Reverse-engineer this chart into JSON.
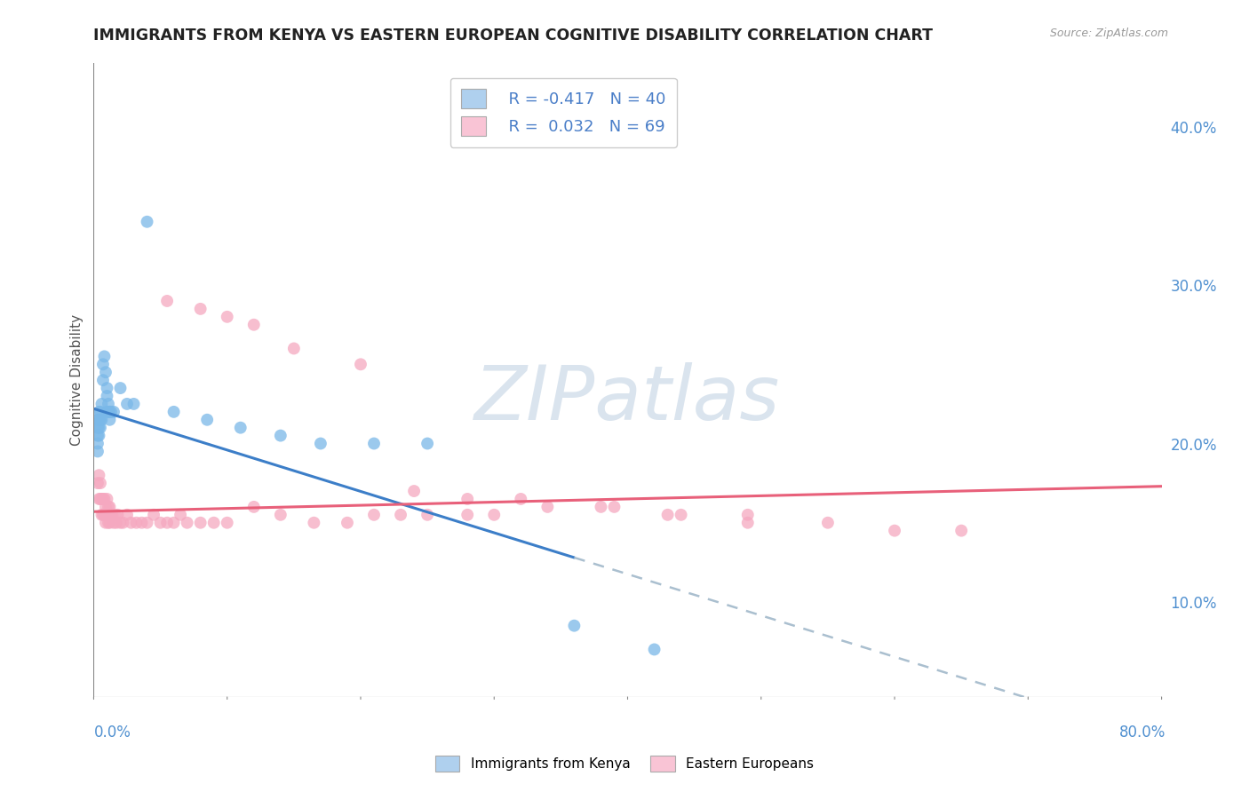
{
  "title": "IMMIGRANTS FROM KENYA VS EASTERN EUROPEAN COGNITIVE DISABILITY CORRELATION CHART",
  "source": "Source: ZipAtlas.com",
  "ylabel": "Cognitive Disability",
  "legend_label1": "Immigrants from Kenya",
  "legend_label2": "Eastern Europeans",
  "r1": -0.417,
  "n1": 40,
  "r2": 0.032,
  "n2": 69,
  "color1": "#7ab8e8",
  "color2": "#f5a8c0",
  "color1_legend": "#afd0ee",
  "color2_legend": "#f9c4d5",
  "trendline1_color": "#3c7ec8",
  "trendline2_color": "#e8607a",
  "trendline_dash_color": "#aabfcf",
  "watermark_color": "#dae4ee",
  "ytick_labels": [
    "10.0%",
    "20.0%",
    "30.0%",
    "40.0%"
  ],
  "ytick_values": [
    0.1,
    0.2,
    0.3,
    0.4
  ],
  "xlim": [
    0.0,
    0.8
  ],
  "ylim": [
    0.04,
    0.44
  ],
  "kenya_x": [
    0.003,
    0.003,
    0.003,
    0.003,
    0.003,
    0.004,
    0.004,
    0.004,
    0.004,
    0.005,
    0.005,
    0.005,
    0.006,
    0.006,
    0.007,
    0.007,
    0.008,
    0.009,
    0.01,
    0.01,
    0.01,
    0.011,
    0.011,
    0.012,
    0.012,
    0.013,
    0.015,
    0.02,
    0.025,
    0.03,
    0.04,
    0.06,
    0.085,
    0.11,
    0.14,
    0.17,
    0.21,
    0.25,
    0.36,
    0.42
  ],
  "kenya_y": [
    0.215,
    0.21,
    0.205,
    0.2,
    0.195,
    0.22,
    0.215,
    0.21,
    0.205,
    0.22,
    0.215,
    0.21,
    0.225,
    0.215,
    0.25,
    0.24,
    0.255,
    0.245,
    0.235,
    0.22,
    0.23,
    0.22,
    0.225,
    0.215,
    0.22,
    0.22,
    0.22,
    0.235,
    0.225,
    0.225,
    0.34,
    0.22,
    0.215,
    0.21,
    0.205,
    0.2,
    0.2,
    0.2,
    0.085,
    0.07
  ],
  "eastern_x": [
    0.003,
    0.004,
    0.004,
    0.005,
    0.005,
    0.006,
    0.006,
    0.007,
    0.007,
    0.008,
    0.008,
    0.009,
    0.009,
    0.01,
    0.01,
    0.011,
    0.011,
    0.012,
    0.012,
    0.013,
    0.014,
    0.015,
    0.016,
    0.017,
    0.018,
    0.02,
    0.022,
    0.025,
    0.028,
    0.032,
    0.036,
    0.04,
    0.045,
    0.05,
    0.055,
    0.06,
    0.065,
    0.07,
    0.08,
    0.09,
    0.1,
    0.12,
    0.14,
    0.165,
    0.19,
    0.21,
    0.23,
    0.25,
    0.28,
    0.3,
    0.34,
    0.39,
    0.44,
    0.49,
    0.055,
    0.08,
    0.1,
    0.12,
    0.15,
    0.2,
    0.24,
    0.28,
    0.32,
    0.38,
    0.43,
    0.49,
    0.55,
    0.6,
    0.65
  ],
  "eastern_y": [
    0.175,
    0.18,
    0.165,
    0.175,
    0.165,
    0.165,
    0.155,
    0.165,
    0.155,
    0.165,
    0.155,
    0.16,
    0.15,
    0.165,
    0.155,
    0.16,
    0.15,
    0.16,
    0.15,
    0.155,
    0.155,
    0.15,
    0.155,
    0.15,
    0.155,
    0.15,
    0.15,
    0.155,
    0.15,
    0.15,
    0.15,
    0.15,
    0.155,
    0.15,
    0.15,
    0.15,
    0.155,
    0.15,
    0.15,
    0.15,
    0.15,
    0.16,
    0.155,
    0.15,
    0.15,
    0.155,
    0.155,
    0.155,
    0.155,
    0.155,
    0.16,
    0.16,
    0.155,
    0.155,
    0.29,
    0.285,
    0.28,
    0.275,
    0.26,
    0.25,
    0.17,
    0.165,
    0.165,
    0.16,
    0.155,
    0.15,
    0.15,
    0.145,
    0.145
  ],
  "trendline1_x0": 0.0,
  "trendline1_y0": 0.222,
  "trendline1_x1": 0.36,
  "trendline1_y1": 0.128,
  "trendline1_dash_x0": 0.36,
  "trendline1_dash_y0": 0.128,
  "trendline1_dash_x1": 0.72,
  "trendline1_dash_y1": 0.034,
  "trendline2_x0": 0.0,
  "trendline2_y0": 0.157,
  "trendline2_x1": 0.8,
  "trendline2_y1": 0.173
}
